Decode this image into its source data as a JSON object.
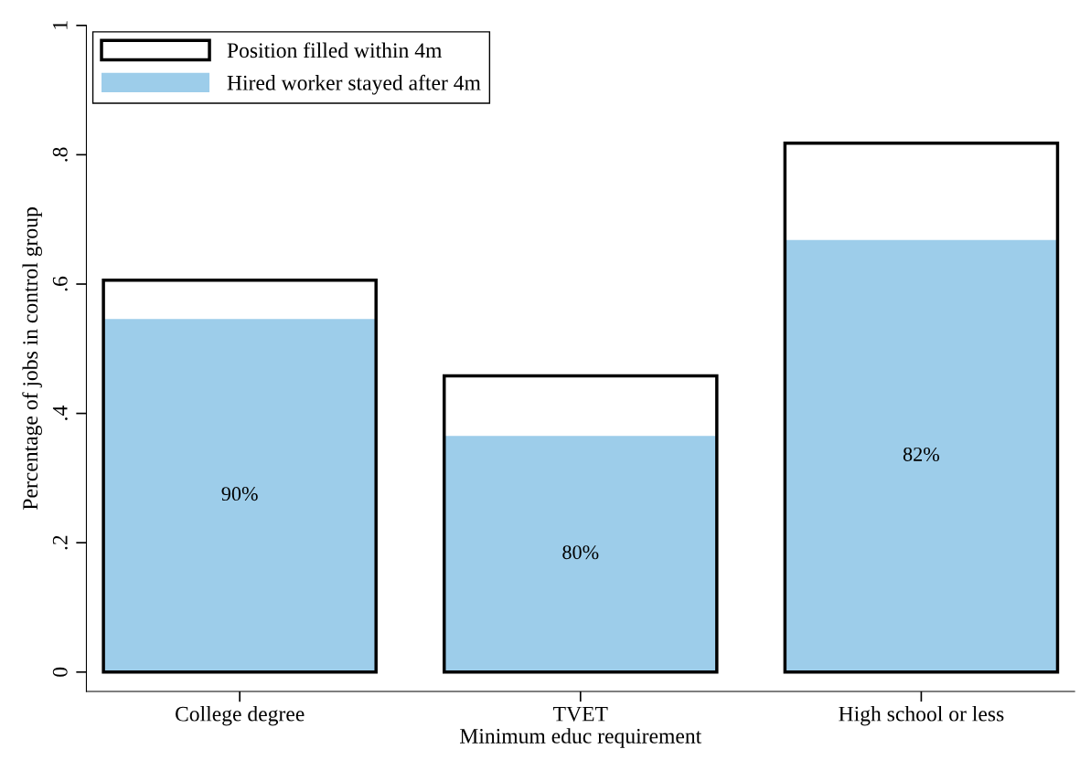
{
  "chart_data": {
    "type": "bar",
    "xlabel": "Minimum educ requirement",
    "ylabel": "Percentage of jobs in control group",
    "categories": [
      "College degree",
      "TVET",
      "High school or less"
    ],
    "series": [
      {
        "name": "Position filled within 4m",
        "color": "#000000",
        "values": [
          0.606,
          0.458,
          0.818
        ]
      },
      {
        "name": "Hired worker stayed after 4m",
        "color": "#9dcdea",
        "values": [
          0.546,
          0.365,
          0.668
        ]
      }
    ],
    "annotations": [
      "90%",
      "80%",
      "82%"
    ],
    "ylim": [
      -0.03,
      1
    ],
    "yticks": [
      0,
      {
        "value": 0.2,
        "label": ".2"
      },
      {
        "value": 0.4,
        "label": ".4"
      },
      {
        "value": 0.6,
        "label": ".6"
      },
      {
        "value": 0.8,
        "label": ".8"
      },
      1
    ],
    "grid": false,
    "legend": "top left"
  }
}
